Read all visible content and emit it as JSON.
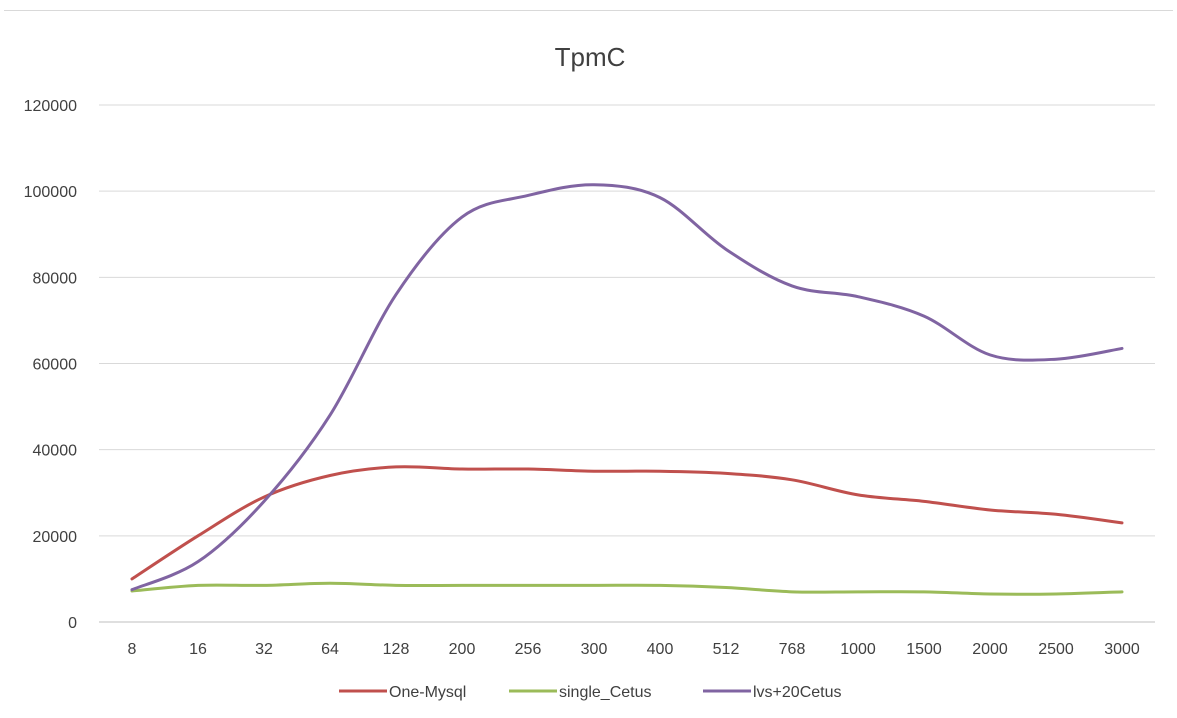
{
  "chart_data": {
    "type": "line",
    "title": "TpmC",
    "xlabel": "",
    "ylabel": "",
    "categories": [
      "8",
      "16",
      "32",
      "64",
      "128",
      "200",
      "256",
      "300",
      "400",
      "512",
      "768",
      "1000",
      "1500",
      "2000",
      "2500",
      "3000"
    ],
    "ylim": [
      0,
      120000
    ],
    "yticks": [
      "0",
      "20000",
      "40000",
      "60000",
      "80000",
      "100000",
      "120000"
    ],
    "grid": true,
    "legend": "bottom",
    "series": [
      {
        "name": "One-Mysql",
        "color": "#c0504d",
        "values": [
          10000,
          20000,
          29000,
          34000,
          36000,
          35500,
          35500,
          35000,
          35000,
          34500,
          33000,
          29500,
          28000,
          26000,
          25000,
          23000
        ]
      },
      {
        "name": "single_Cetus",
        "color": "#9bbb59",
        "values": [
          7200,
          8500,
          8500,
          9000,
          8500,
          8500,
          8500,
          8500,
          8500,
          8000,
          7000,
          7000,
          7000,
          6500,
          6500,
          7000
        ]
      },
      {
        "name": "lvs+20Cetus",
        "color": "#8064a2",
        "values": [
          7500,
          14000,
          28000,
          48000,
          76000,
          94000,
          99000,
          101500,
          98500,
          86500,
          78000,
          75500,
          71000,
          62000,
          61000,
          63500
        ]
      }
    ]
  }
}
